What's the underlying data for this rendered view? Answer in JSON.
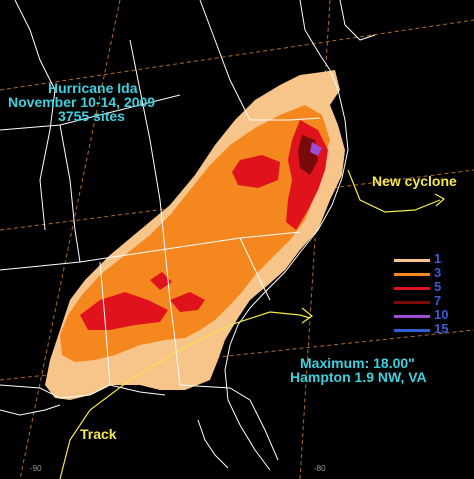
{
  "title": {
    "line1": "Hurricane Ida",
    "line2": "November 10-14, 2009",
    "line3": "3755 sites"
  },
  "annotations": {
    "new_cyclone": "New cyclone",
    "track": "Track",
    "maximum": "Maximum:  18.00\"",
    "maximum_location": "Hampton 1.9 NW, VA"
  },
  "legend": [
    {
      "value": "1",
      "color": "#f7c48a"
    },
    {
      "value": "3",
      "color": "#f5871f"
    },
    {
      "value": "5",
      "color": "#e0121c"
    },
    {
      "value": "7",
      "color": "#7a0a0a"
    },
    {
      "value": "10",
      "color": "#9b4dd6"
    },
    {
      "value": "15",
      "color": "#2f5fd0"
    }
  ],
  "tick_labels": {
    "left": "-90",
    "right": "-80"
  },
  "colors": {
    "background": "#000000",
    "title_text": "#3fd0e0",
    "annotation_text": "#f5e84a",
    "boundaries": "#ffffff",
    "graticule": "#b06a2a"
  }
}
